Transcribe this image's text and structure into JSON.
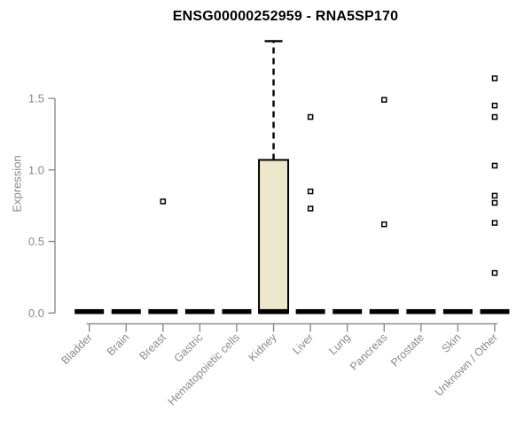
{
  "chart_data": {
    "type": "box",
    "title": "ENSG00000252959 - RNA5SP170",
    "xlabel": "",
    "ylabel": "Expression",
    "yticks": [
      0.0,
      0.5,
      1.0,
      1.5
    ],
    "ytick_labels": [
      "0.0",
      "0.5",
      "1.0",
      "1.5"
    ],
    "ylim": [
      0,
      1.95
    ],
    "grid": false,
    "legend": "none",
    "categories": [
      "Bladder",
      "Brain",
      "Breast",
      "Gastric",
      "Hematopoietic cells",
      "Kidney",
      "Liver",
      "Lung",
      "Pancreas",
      "Prostate",
      "Skin",
      "Unknown / Other"
    ],
    "boxes": [
      {
        "category": "Bladder",
        "median": 0.01,
        "q1": 0,
        "q3": 0,
        "whisker_low": 0,
        "whisker_high": 0,
        "outliers": []
      },
      {
        "category": "Brain",
        "median": 0.01,
        "q1": 0,
        "q3": 0,
        "whisker_low": 0,
        "whisker_high": 0,
        "outliers": []
      },
      {
        "category": "Breast",
        "median": 0.01,
        "q1": 0,
        "q3": 0,
        "whisker_low": 0,
        "whisker_high": 0,
        "outliers": [
          0.78
        ]
      },
      {
        "category": "Gastric",
        "median": 0.01,
        "q1": 0,
        "q3": 0,
        "whisker_low": 0,
        "whisker_high": 0,
        "outliers": []
      },
      {
        "category": "Hematopoietic cells",
        "median": 0.01,
        "q1": 0,
        "q3": 0,
        "whisker_low": 0,
        "whisker_high": 0,
        "outliers": []
      },
      {
        "category": "Kidney",
        "median": 0.01,
        "q1": 0,
        "q3": 1.07,
        "whisker_low": 0,
        "whisker_high": 1.9,
        "outliers": []
      },
      {
        "category": "Liver",
        "median": 0.01,
        "q1": 0,
        "q3": 0,
        "whisker_low": 0,
        "whisker_high": 0,
        "outliers": [
          1.37,
          0.85,
          0.73
        ]
      },
      {
        "category": "Lung",
        "median": 0.01,
        "q1": 0,
        "q3": 0,
        "whisker_low": 0,
        "whisker_high": 0,
        "outliers": []
      },
      {
        "category": "Pancreas",
        "median": 0.01,
        "q1": 0,
        "q3": 0,
        "whisker_low": 0,
        "whisker_high": 0,
        "outliers": [
          1.49,
          0.62
        ]
      },
      {
        "category": "Prostate",
        "median": 0.01,
        "q1": 0,
        "q3": 0,
        "whisker_low": 0,
        "whisker_high": 0,
        "outliers": []
      },
      {
        "category": "Skin",
        "median": 0.01,
        "q1": 0,
        "q3": 0,
        "whisker_low": 0,
        "whisker_high": 0,
        "outliers": []
      },
      {
        "category": "Unknown / Other",
        "median": 0.01,
        "q1": 0,
        "q3": 0,
        "whisker_low": 0,
        "whisker_high": 0,
        "outliers": [
          1.64,
          1.45,
          1.37,
          1.03,
          0.82,
          0.77,
          0.63,
          0.28
        ]
      }
    ],
    "colors": {
      "box_fill": "#ECE6CA",
      "box_border": "#000000",
      "median": "#000000",
      "whisker": "#000000",
      "outlier_fill": "#ffffff",
      "outlier_border": "#000000",
      "axis": "#8a8a8a",
      "tick_label": "#8a8a8a",
      "title": "#000000",
      "background": "#ffffff"
    }
  }
}
